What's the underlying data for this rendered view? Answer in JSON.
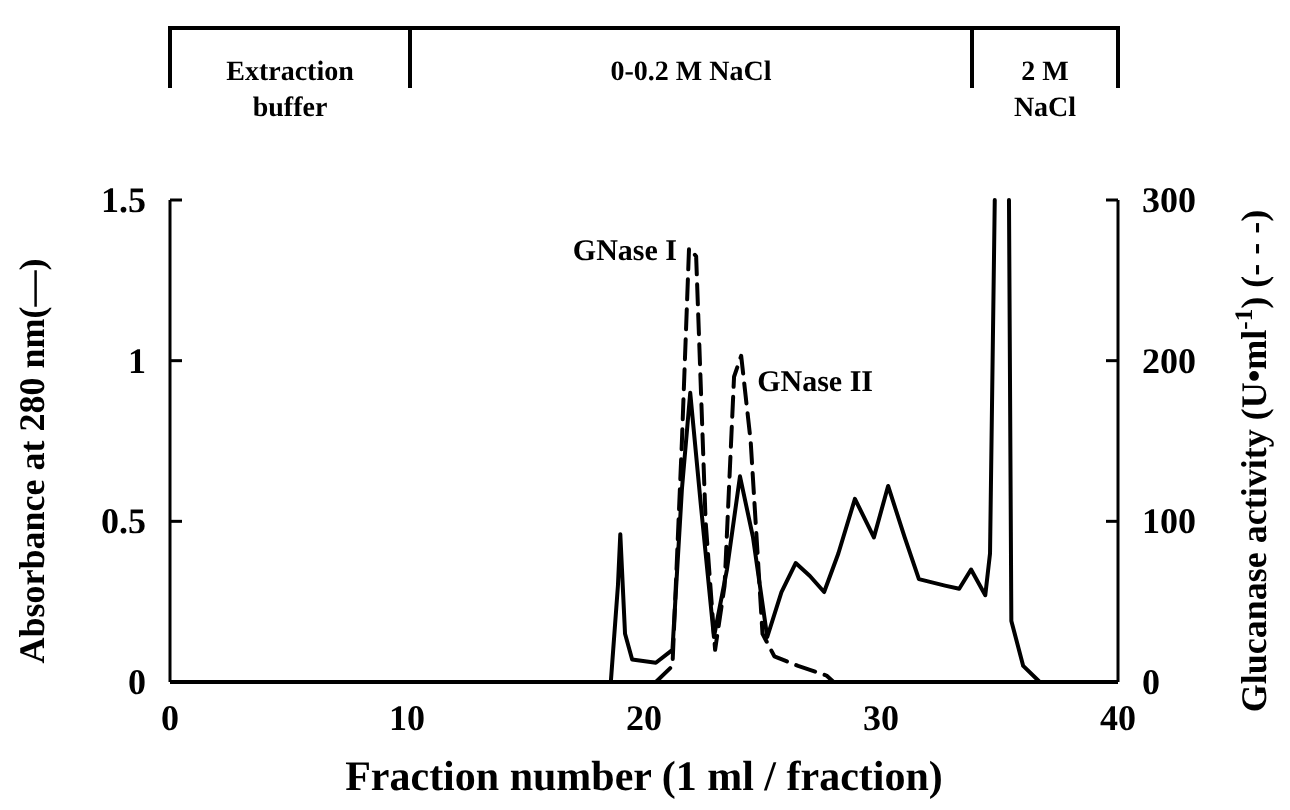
{
  "chart_data": {
    "type": "line",
    "xlabel": "Fraction number (1 ml / fraction)",
    "ylabel": "Absorbance at 280 nm(—)",
    "y2label": "Glucanase activity (U•ml$^{-1}$) (- - -)",
    "xlim": [
      0,
      40
    ],
    "xticks": [
      0,
      10,
      20,
      30,
      40
    ],
    "ylim": [
      0,
      1.5
    ],
    "yticks": [
      0,
      0.5,
      1,
      1.5
    ],
    "y2lim": [
      0,
      300
    ],
    "y2ticks": [
      0,
      100,
      200,
      300
    ],
    "grid": false,
    "marker": "none",
    "series": [
      {
        "color": "#000000",
        "line_style": "solid",
        "x": [
          0,
          18.6,
          18.9,
          19.0,
          19.2,
          19.5,
          20.5,
          21.2,
          21.6,
          21.95,
          22.4,
          22.95,
          23.5,
          24.05,
          24.6,
          25.2,
          25.8,
          26.4,
          27.0,
          27.6,
          28.2,
          28.9,
          29.7,
          30.3,
          31.0,
          31.6,
          32.7,
          33.3,
          33.8,
          34.4,
          34.6,
          34.8,
          35.1,
          35.4,
          35.5,
          36.0,
          36.7,
          40
        ],
        "values": [
          0,
          0,
          0.3,
          0.46,
          0.15,
          0.07,
          0.06,
          0.1,
          0.6,
          0.9,
          0.55,
          0.14,
          0.35,
          0.64,
          0.45,
          0.14,
          0.28,
          0.37,
          0.33,
          0.28,
          0.4,
          0.57,
          0.45,
          0.61,
          0.45,
          0.32,
          0.3,
          0.29,
          0.35,
          0.27,
          0.4,
          1.5,
          null,
          1.5,
          0.19,
          0.05,
          0,
          0
        ]
      },
      {
        "color": "#000000",
        "line_style": "dashed",
        "axis": "y2",
        "x": [
          20.5,
          21.2,
          21.6,
          21.9,
          22.2,
          22.6,
          23.0,
          23.4,
          23.8,
          24.1,
          24.5,
          25.0,
          25.5,
          26.5,
          27.7,
          28.0
        ],
        "values": [
          0,
          10,
          150,
          270,
          265,
          100,
          20,
          60,
          190,
          203,
          150,
          30,
          16,
          10,
          4,
          0
        ]
      }
    ],
    "annotations": [
      {
        "text": "GNase I",
        "x": 21.9,
        "y": 1.35
      },
      {
        "text": "GNase II",
        "x": 24.1,
        "y": 1.0
      },
      "Extraction buffer",
      "0-0.2 M NaCl",
      "2 M NaCl"
    ]
  }
}
